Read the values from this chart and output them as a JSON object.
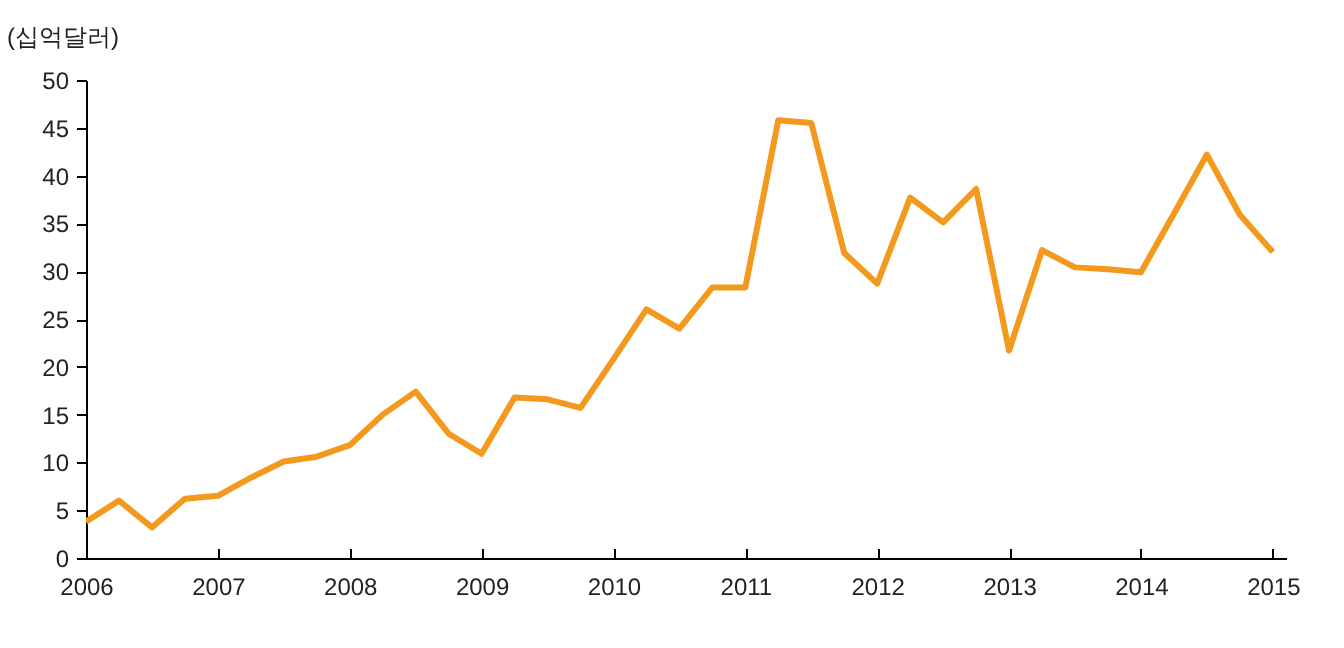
{
  "chart_data": {
    "type": "line",
    "ylabel": "(십억달러)",
    "x": [
      2006,
      2006.25,
      2006.5,
      2006.75,
      2007,
      2007.25,
      2007.5,
      2007.75,
      2008,
      2008.25,
      2008.5,
      2008.75,
      2009,
      2009.25,
      2009.5,
      2009.75,
      2010,
      2010.25,
      2010.5,
      2010.75,
      2011,
      2011.25,
      2011.5,
      2011.75,
      2012,
      2012.25,
      2012.5,
      2012.75,
      2013,
      2013.25,
      2013.5,
      2013.75,
      2014,
      2014.25,
      2014.5,
      2014.75,
      2015
    ],
    "series": [
      {
        "color": "#f39a1e",
        "values": [
          3.8,
          6.0,
          3.2,
          6.2,
          6.5,
          8.4,
          10.1,
          10.6,
          11.8,
          15.0,
          17.4,
          13.0,
          10.9,
          16.8,
          16.6,
          15.7,
          20.8,
          26.0,
          24.0,
          28.3,
          28.3,
          45.8,
          45.5,
          31.9,
          28.7,
          37.7,
          35.1,
          38.6,
          21.7,
          32.2,
          30.4,
          30.2,
          29.9,
          36.0,
          42.2,
          35.9,
          32.0
        ]
      }
    ],
    "xlim": [
      2006,
      2015.1
    ],
    "xticks": [
      2006,
      2007,
      2008,
      2009,
      2010,
      2011,
      2012,
      2013,
      2014,
      2015
    ],
    "ylim": [
      0,
      50
    ],
    "yticks": [
      0,
      5,
      10,
      15,
      20,
      25,
      30,
      35,
      40,
      45,
      50
    ],
    "grid": false,
    "marker": "none",
    "line_style": "solid"
  }
}
